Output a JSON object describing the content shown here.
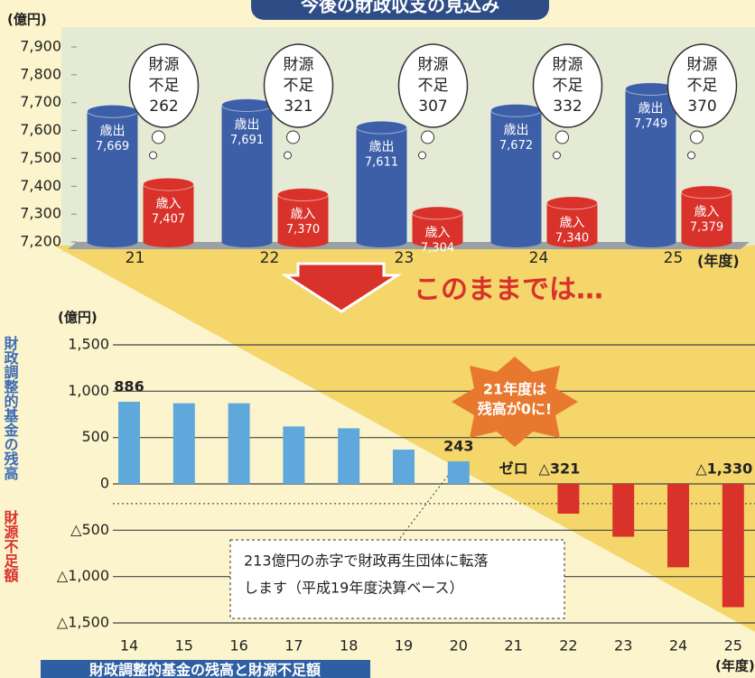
{
  "chart_data": [
    {
      "type": "bar",
      "title": "今後の財政収支の見込み",
      "y_unit": "(億円)",
      "x_label": "(年度)",
      "categories": [
        "21",
        "22",
        "23",
        "24",
        "25"
      ],
      "series": [
        {
          "name": "歳出",
          "color": "#3d5fa8",
          "values": [
            7669,
            7691,
            7611,
            7672,
            7749
          ],
          "value_labels": [
            "7,669",
            "7,691",
            "7,611",
            "7,672",
            "7,749"
          ]
        },
        {
          "name": "歳入",
          "color": "#d9322b",
          "values": [
            7407,
            7370,
            7304,
            7340,
            7379
          ],
          "value_labels": [
            "7,407",
            "7,370",
            "7,304",
            "7,340",
            "7,379"
          ]
        }
      ],
      "callouts": {
        "label": [
          "財源",
          "不足"
        ],
        "values": [
          262,
          321,
          307,
          332,
          370
        ]
      },
      "ylim": [
        7200,
        7900
      ],
      "yticks": [
        {
          "value": 7200,
          "label": "7,200"
        },
        {
          "value": 7300,
          "label": "7,300"
        },
        {
          "value": 7400,
          "label": "7,400"
        },
        {
          "value": 7500,
          "label": "7,500"
        },
        {
          "value": 7600,
          "label": "7,600"
        },
        {
          "value": 7700,
          "label": "7,700"
        },
        {
          "value": 7800,
          "label": "7,800"
        },
        {
          "value": 7900,
          "label": "7,900"
        }
      ]
    },
    {
      "type": "bar",
      "y_unit": "(億円)",
      "x_label": "(年度)",
      "categories": [
        "14",
        "15",
        "16",
        "17",
        "18",
        "19",
        "20",
        "21",
        "22",
        "23",
        "24",
        "25"
      ],
      "series": [
        {
          "name": "財政調整的基金の残高",
          "color": "#5fa8dc",
          "values": [
            886,
            870,
            870,
            620,
            600,
            370,
            243,
            0,
            null,
            null,
            null,
            null
          ],
          "value_labels": [
            "886",
            null,
            null,
            null,
            null,
            null,
            "243",
            "ゼロ",
            null,
            null,
            null,
            null
          ]
        },
        {
          "name": "財源不足額",
          "color": "#d9322b",
          "values": [
            null,
            null,
            null,
            null,
            null,
            null,
            null,
            null,
            -321,
            -570,
            -900,
            -1330
          ],
          "value_labels": [
            null,
            null,
            null,
            null,
            null,
            null,
            null,
            null,
            "△321",
            null,
            null,
            "△1,330"
          ]
        }
      ],
      "ref_line": -213,
      "annotation": [
        "213億円の赤字で財政再生団体に転落",
        "します（平成19年度決算ベース）"
      ],
      "badge": [
        "21年度は",
        "残高が0に!"
      ],
      "ylim": [
        -1500,
        1500
      ],
      "yticks": [
        {
          "value": -1500,
          "label": "△1,500"
        },
        {
          "value": -1000,
          "label": "△1,000"
        },
        {
          "value": -500,
          "label": "△500"
        },
        0,
        {
          "value": 500,
          "label": "500"
        },
        {
          "value": 1000,
          "label": "1,000"
        },
        {
          "value": 1500,
          "label": "1,500"
        }
      ],
      "grid": true
    }
  ],
  "transition": "このままでは…",
  "caption": "財政調整的基金の残高と財源不足額"
}
